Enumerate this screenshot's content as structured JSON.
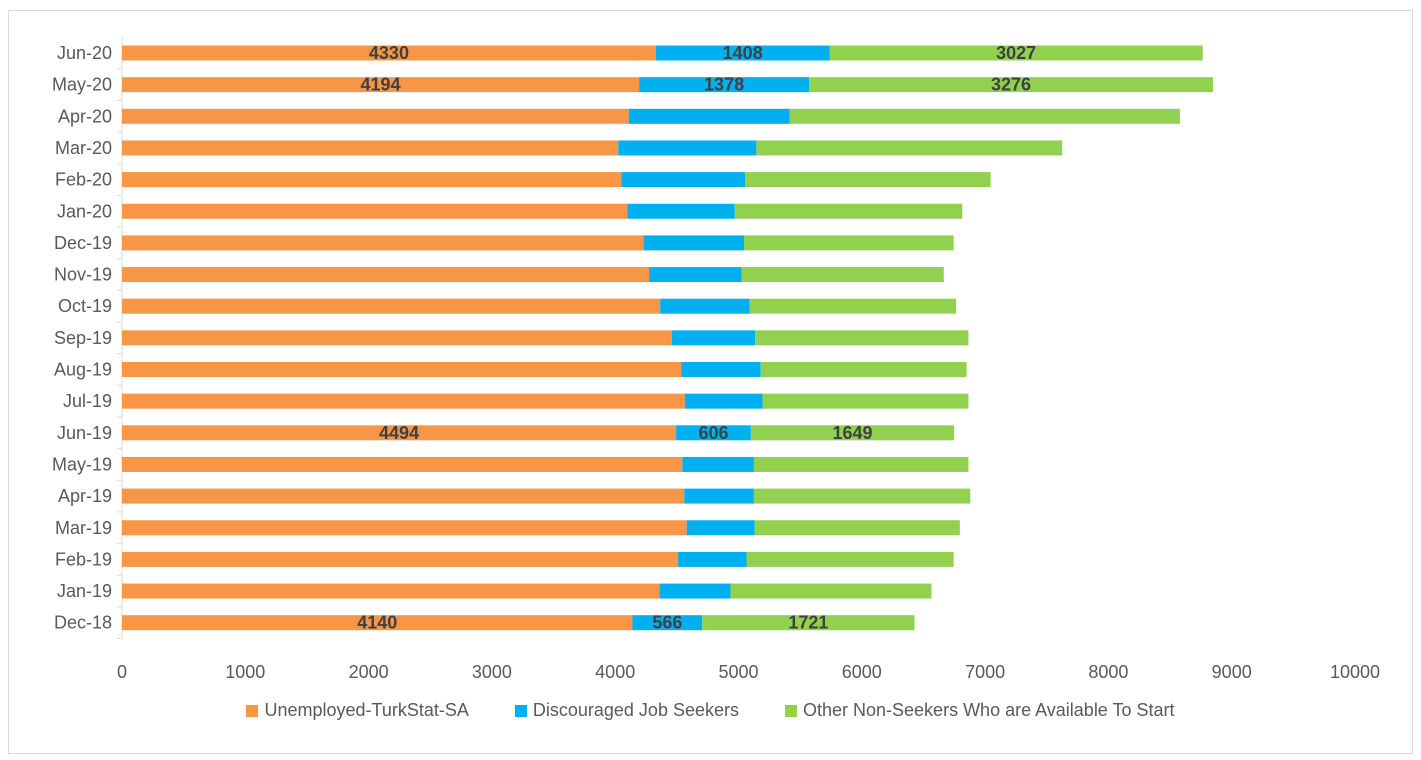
{
  "chart_data": {
    "type": "bar",
    "orientation": "horizontal",
    "stacked": true,
    "title": "",
    "xlabel": "",
    "ylabel": "",
    "xlim": [
      0,
      10000
    ],
    "x_ticks": [
      "0",
      "1000",
      "2000",
      "3000",
      "4000",
      "5000",
      "6000",
      "7000",
      "8000",
      "9000",
      "10000"
    ],
    "grid": false,
    "legend_position": "bottom",
    "categories": [
      "Jun-20",
      "May-20",
      "Apr-20",
      "Mar-20",
      "Feb-20",
      "Jan-20",
      "Dec-19",
      "Nov-19",
      "Oct-19",
      "Sep-19",
      "Aug-19",
      "Jul-19",
      "Jun-19",
      "May-19",
      "Apr-19",
      "Mar-19",
      "Feb-19",
      "Jan-19",
      "Dec-18"
    ],
    "series": [
      {
        "name": "Unemployed-TurkStat-SA",
        "color": "#f79646",
        "values": [
          4330,
          4194,
          4110,
          4025,
          4050,
          4100,
          4230,
          4275,
          4365,
          4460,
          4535,
          4565,
          4494,
          4545,
          4560,
          4580,
          4510,
          4360,
          4140
        ],
        "labels": [
          "4330",
          "4194",
          "",
          "",
          "",
          "",
          "",
          "",
          "",
          "",
          "",
          "",
          "4494",
          "",
          "",
          "",
          "",
          "",
          "4140"
        ]
      },
      {
        "name": "Discouraged Job Seekers",
        "color": "#00b0f0",
        "values": [
          1408,
          1378,
          1305,
          1120,
          1005,
          870,
          815,
          750,
          725,
          675,
          645,
          630,
          606,
          580,
          565,
          550,
          555,
          575,
          566
        ],
        "labels": [
          "1408",
          "1378",
          "",
          "",
          "",
          "",
          "",
          "",
          "",
          "",
          "",
          "",
          "606",
          "",
          "",
          "",
          "",
          "",
          "566"
        ]
      },
      {
        "name": "Other Non-Seekers Who are Available To Start",
        "color": "#92d050",
        "values": [
          3027,
          3276,
          3165,
          2480,
          1990,
          1845,
          1700,
          1640,
          1675,
          1730,
          1670,
          1670,
          1649,
          1740,
          1755,
          1665,
          1680,
          1630,
          1721
        ],
        "labels": [
          "3027",
          "3276",
          "",
          "",
          "",
          "",
          "",
          "",
          "",
          "",
          "",
          "",
          "1649",
          "",
          "",
          "",
          "",
          "",
          "1721"
        ]
      }
    ]
  }
}
